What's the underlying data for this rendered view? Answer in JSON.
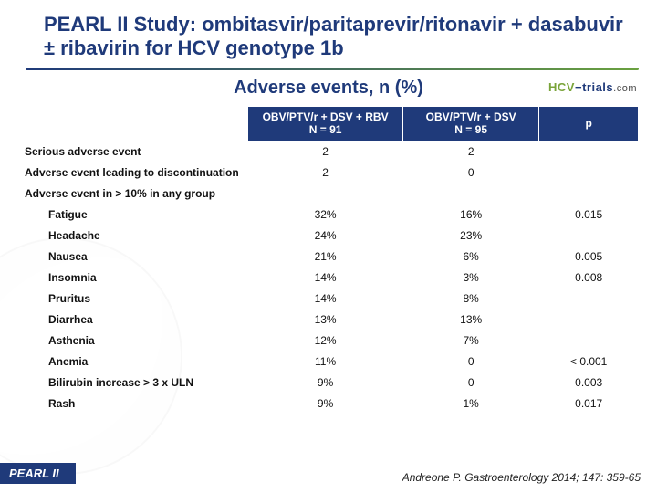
{
  "title": "PEARL II Study: ombitasvir/paritaprevir/ritonavir + dasabuvir ± ribavirin for HCV genotype 1b",
  "brand": {
    "hcv": "HCV",
    "dash": "−",
    "trials": "trials",
    "com": ".com"
  },
  "subtitle": "Adverse events, n (%)",
  "headers": {
    "col1_line1": "OBV/PTV/r + DSV + RBV",
    "col1_line2": "N = 91",
    "col2_line1": "OBV/PTV/r + DSV",
    "col2_line2": "N = 95",
    "col3": "p"
  },
  "rows": [
    {
      "label": "Serious adverse event",
      "c1": "2",
      "c2": "2",
      "c3": ""
    },
    {
      "label": "Adverse event leading to discontinuation",
      "c1": "2",
      "c2": "0",
      "c3": ""
    },
    {
      "label": "Adverse event in > 10% in any group",
      "section": true
    },
    {
      "label": "Fatigue",
      "indent": true,
      "c1": "32%",
      "c2": "16%",
      "c3": "0.015"
    },
    {
      "label": "Headache",
      "indent": true,
      "c1": "24%",
      "c2": "23%",
      "c3": ""
    },
    {
      "label": "Nausea",
      "indent": true,
      "c1": "21%",
      "c2": "6%",
      "c3": "0.005"
    },
    {
      "label": "Insomnia",
      "indent": true,
      "c1": "14%",
      "c2": "3%",
      "c3": "0.008"
    },
    {
      "label": "Pruritus",
      "indent": true,
      "c1": "14%",
      "c2": "8%",
      "c3": ""
    },
    {
      "label": "Diarrhea",
      "indent": true,
      "c1": "13%",
      "c2": "13%",
      "c3": ""
    },
    {
      "label": "Asthenia",
      "indent": true,
      "c1": "12%",
      "c2": "7%",
      "c3": ""
    },
    {
      "label": "Anemia",
      "indent": true,
      "c1": "11%",
      "c2": "0",
      "c3": "< 0.001"
    },
    {
      "label": "Bilirubin increase > 3 x ULN",
      "indent": true,
      "c1": "9%",
      "c2": "0",
      "c3": "0.003"
    },
    {
      "label": "Rash",
      "indent": true,
      "c1": "9%",
      "c2": "1%",
      "c3": "0.017"
    }
  ],
  "footer_left": "PEARL II",
  "footer_right": "Andreone P. Gastroenterology 2014; 147: 359-65"
}
